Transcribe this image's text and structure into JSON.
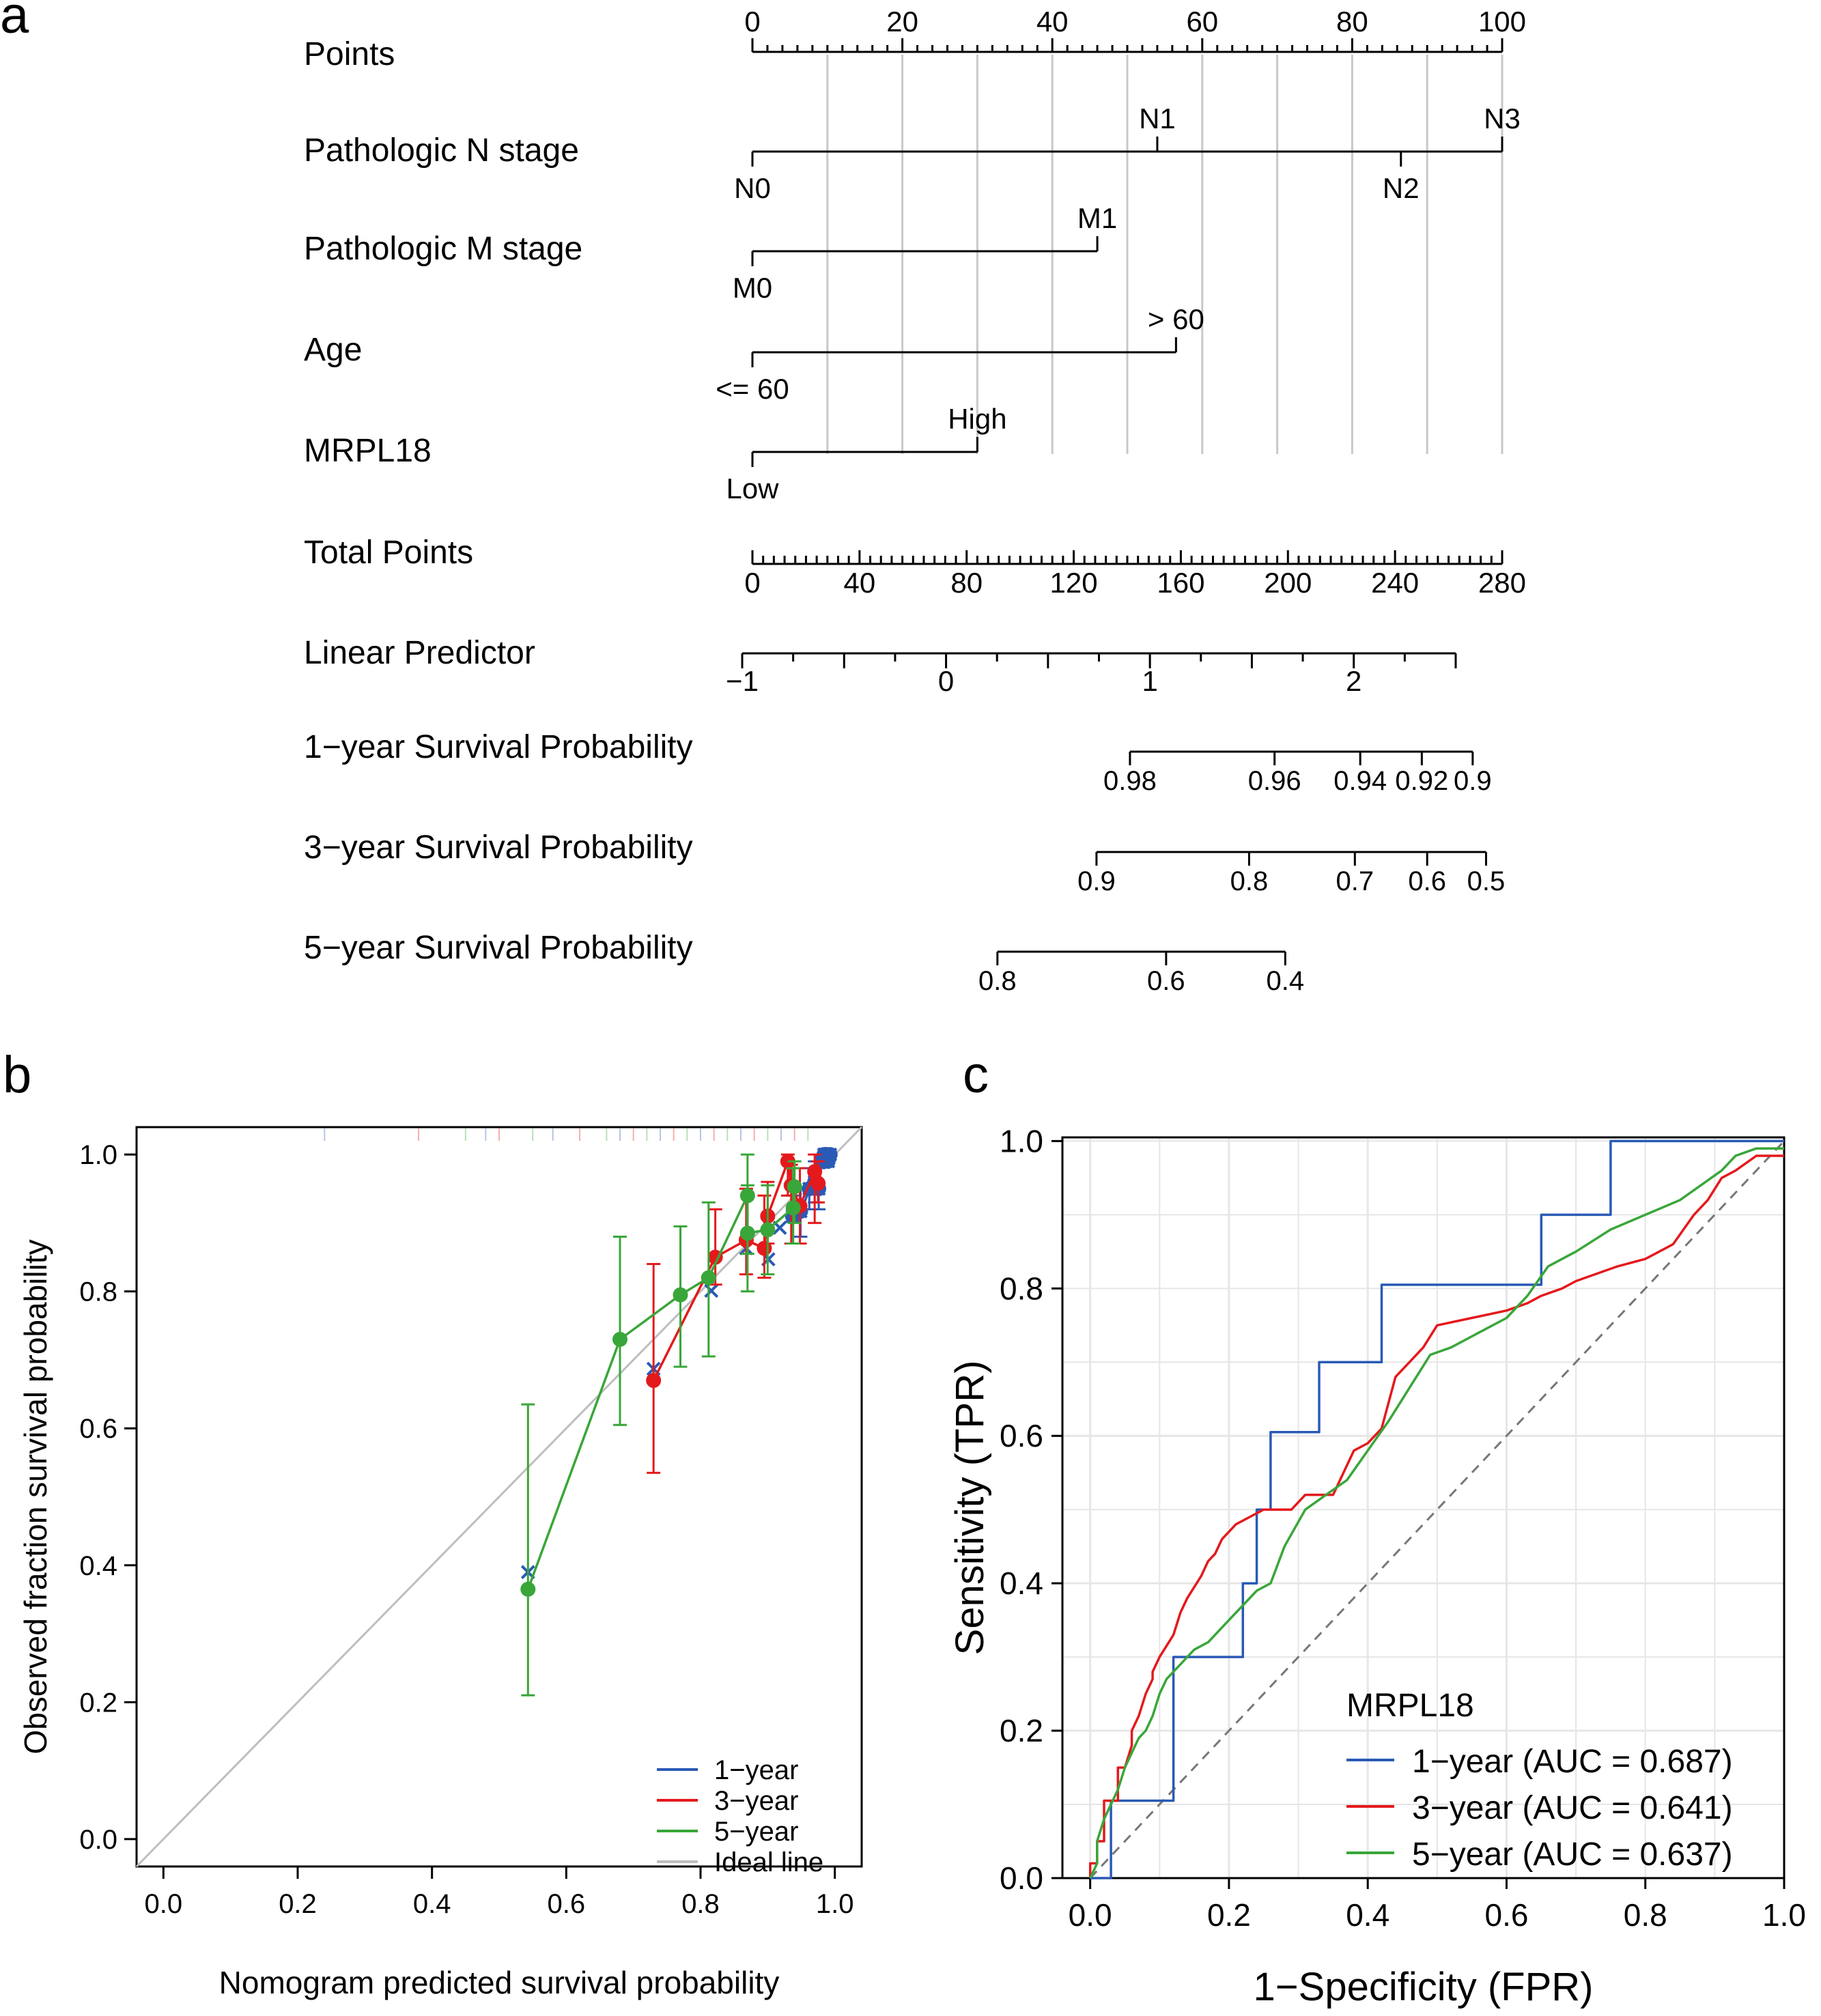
{
  "panels": {
    "a": "a",
    "b": "b",
    "c": "c"
  },
  "chart_data": [
    {
      "type": "nomogram",
      "panel": "a",
      "points_axis": {
        "label": "Points",
        "range": [
          0,
          100
        ],
        "major_ticks": [
          0,
          20,
          40,
          60,
          80,
          100
        ],
        "tick_labels": [
          "0",
          "20",
          "40",
          "60",
          "80",
          "100"
        ],
        "minor_step": 2,
        "gridlines": [
          10,
          20,
          30,
          40,
          50,
          60,
          70,
          80,
          90,
          100
        ]
      },
      "variables": [
        {
          "label": "Pathologic N stage",
          "levels": [
            {
              "name": "N0",
              "points": 0,
              "pos": "below"
            },
            {
              "name": "N1",
              "points": 54,
              "pos": "above"
            },
            {
              "name": "N2",
              "points": 86.5,
              "pos": "below"
            },
            {
              "name": "N3",
              "points": 100,
              "pos": "above"
            }
          ]
        },
        {
          "label": "Pathologic M stage",
          "levels": [
            {
              "name": "M0",
              "points": 0,
              "pos": "below"
            },
            {
              "name": "M1",
              "points": 46,
              "pos": "above"
            }
          ]
        },
        {
          "label": "Age",
          "levels": [
            {
              "name": "<= 60",
              "points": 0,
              "pos": "below"
            },
            {
              "name": "> 60",
              "points": 56.5,
              "pos": "above"
            }
          ]
        },
        {
          "label": "MRPL18",
          "levels": [
            {
              "name": "Low",
              "points": 0,
              "pos": "below"
            },
            {
              "name": "High",
              "points": 30,
              "pos": "above"
            }
          ]
        }
      ],
      "total_points": {
        "label": "Total Points",
        "range": [
          0,
          280
        ],
        "major_ticks": [
          0,
          40,
          80,
          120,
          160,
          200,
          240,
          280
        ],
        "tick_labels": [
          "0",
          "40",
          "80",
          "120",
          "160",
          "200",
          "240",
          "280"
        ],
        "minor_step": 4
      },
      "linear_predictor": {
        "label": "Linear Predictor",
        "range": [
          -1,
          2.5
        ],
        "ticks": [
          -1,
          -0.5,
          0,
          0.5,
          1,
          1.5,
          2,
          2.5
        ],
        "tick_labels": [
          "−1",
          "0",
          "1",
          "2"
        ],
        "labeled_values": [
          -1,
          0,
          1,
          2
        ],
        "minor_step": 0.25
      },
      "survival_scales": [
        {
          "label": "1−year Survival Probability",
          "ticks": [
            {
              "label": "0.98",
              "total_points": 141
            },
            {
              "label": "0.96",
              "total_points": 195
            },
            {
              "label": "0.94",
              "total_points": 227
            },
            {
              "label": "0.92",
              "total_points": 250
            },
            {
              "label": "0.9",
              "total_points": 269
            }
          ]
        },
        {
          "label": "3−year Survival Probability",
          "ticks": [
            {
              "label": "0.9",
              "total_points": 128.5
            },
            {
              "label": "0.8",
              "total_points": 185.5
            },
            {
              "label": "0.7",
              "total_points": 225
            },
            {
              "label": "0.6",
              "total_points": 252
            },
            {
              "label": "0.5",
              "total_points": 274
            }
          ]
        },
        {
          "label": "5−year Survival Probability",
          "ticks": [
            {
              "label": "0.8",
              "total_points": 91.5
            },
            {
              "label": "0.6",
              "total_points": 154.5
            },
            {
              "label": "0.4",
              "total_points": 199
            }
          ]
        }
      ]
    },
    {
      "type": "scatter",
      "panel": "b",
      "xlabel": "Nomogram predicted survival probability",
      "ylabel": "Observed fraction survival probability",
      "xlim": [
        -0.04,
        1.04
      ],
      "ylim": [
        -0.04,
        1.04
      ],
      "xticks": [
        0,
        0.2,
        0.4,
        0.6,
        0.8,
        1
      ],
      "xtick_labels": [
        "0.0",
        "0.2",
        "0.4",
        "0.6",
        "0.8",
        "1.0"
      ],
      "yticks": [
        0,
        0.2,
        0.4,
        0.6,
        0.8,
        1
      ],
      "ytick_labels": [
        "0.0",
        "0.2",
        "0.4",
        "0.6",
        "0.8",
        "1.0"
      ],
      "grid": false,
      "legend_position": "bottom-right",
      "ideal_line": {
        "name": "Ideal line",
        "color": "#bebebe"
      },
      "series": [
        {
          "name": "1−year",
          "color": "#2a5ab5",
          "x": [
            0.543,
            0.73,
            0.816,
            0.868,
            0.901,
            0.918,
            0.937,
            0.949,
            0.962,
            0.97,
            0.976,
            0.98,
            0.984,
            0.986,
            0.988,
            0.99,
            0.993
          ],
          "y": [
            0.39,
            0.687,
            0.801,
            0.863,
            0.847,
            0.893,
            0.91,
            0.917,
            0.95,
            0.96,
            0.95,
            0.99,
            1.0,
            1.0,
            1.0,
            0.99,
            1.0
          ],
          "err_low": [
            null,
            null,
            null,
            null,
            null,
            null,
            0.87,
            0.88,
            0.92,
            0.93,
            0.92,
            null,
            null,
            null,
            null,
            null,
            null
          ],
          "err_high": [
            null,
            null,
            null,
            null,
            null,
            null,
            0.94,
            0.95,
            0.98,
            0.99,
            0.98,
            null,
            null,
            null,
            null,
            null,
            null
          ],
          "smooth_x": [
            0.945,
            0.955,
            0.962,
            0.97,
            0.976,
            0.98,
            0.984,
            0.986,
            0.99,
            0.993
          ],
          "smooth_y": [
            0.92,
            0.93,
            0.95,
            0.96,
            0.955,
            0.99,
            1.0,
            1.0,
            0.99,
            1.0
          ]
        },
        {
          "name": "3−year",
          "color": "#e4191c",
          "x": [
            0.73,
            0.822,
            0.868,
            0.895,
            0.9,
            0.93,
            0.935,
            0.948,
            0.97,
            0.975
          ],
          "y": [
            0.67,
            0.85,
            0.875,
            0.863,
            0.91,
            0.99,
            0.955,
            0.925,
            0.975,
            0.958
          ],
          "err_low": [
            0.535,
            0.81,
            0.825,
            0.82,
            0.87,
            0.94,
            0.87,
            0.87,
            0.9,
            0.93
          ],
          "err_high": [
            0.84,
            0.92,
            0.95,
            0.94,
            0.96,
            1.0,
            0.985,
            0.98,
            1.0,
            0.99
          ],
          "smooth_x": [
            0.73,
            0.822,
            0.868,
            0.895,
            0.9,
            0.93,
            0.935,
            0.948,
            0.97,
            0.975
          ],
          "smooth_y": [
            0.67,
            0.85,
            0.875,
            0.863,
            0.91,
            0.99,
            0.955,
            0.925,
            0.975,
            0.958
          ]
        },
        {
          "name": "5−year",
          "color": "#39a639",
          "x": [
            0.543,
            0.68,
            0.77,
            0.812,
            0.87,
            0.87,
            0.9,
            0.938,
            0.94
          ],
          "y": [
            0.365,
            0.73,
            0.795,
            0.82,
            0.94,
            0.885,
            0.89,
            0.922,
            0.953
          ],
          "err_low": [
            0.21,
            0.605,
            0.69,
            0.705,
            0.855,
            0.8,
            0.825,
            0.87,
            0.9
          ],
          "err_high": [
            0.635,
            0.88,
            0.895,
            0.93,
            1.0,
            0.955,
            0.955,
            0.98,
            0.99
          ],
          "smooth_x": [
            0.543,
            0.68,
            0.77,
            0.812,
            0.87,
            0.87,
            0.9,
            0.938,
            0.94
          ],
          "smooth_y": [
            0.365,
            0.73,
            0.795,
            0.82,
            0.94,
            0.885,
            0.89,
            0.922,
            0.953
          ]
        }
      ],
      "rug": [
        0.24,
        0.38,
        0.45,
        0.48,
        0.5,
        0.55,
        0.58,
        0.62,
        0.66,
        0.68,
        0.7,
        0.72,
        0.74,
        0.76,
        0.78,
        0.8,
        0.82,
        0.84,
        0.86,
        0.88,
        0.9,
        0.92,
        0.94,
        0.96
      ]
    },
    {
      "type": "line",
      "panel": "c",
      "xlabel": "1−Specificity (FPR)",
      "ylabel": "Sensitivity (TPR)",
      "xlim": [
        -0.04,
        1.0
      ],
      "ylim": [
        0,
        1.005
      ],
      "xticks": [
        0,
        0.2,
        0.4,
        0.6,
        0.8,
        1
      ],
      "xtick_labels": [
        "0.0",
        "0.2",
        "0.4",
        "0.6",
        "0.8",
        "1.0"
      ],
      "yticks": [
        0,
        0.2,
        0.4,
        0.6,
        0.8,
        1
      ],
      "ytick_labels": [
        "0.0",
        "0.2",
        "0.4",
        "0.6",
        "0.8",
        "1.0"
      ],
      "grid": true,
      "diagonal": {
        "color": "#777777",
        "dashed": true
      },
      "legend_title": "MRPL18",
      "legend_position": "bottom-right",
      "series": [
        {
          "name": "1−year (AUC = 0.687)",
          "color": "#2a5ab5",
          "x": [
            0,
            0.03,
            0.03,
            0.12,
            0.12,
            0.13,
            0.13,
            0.22,
            0.22,
            0.24,
            0.24,
            0.26,
            0.26,
            0.33,
            0.33,
            0.42,
            0.42,
            0.65,
            0.65,
            0.75,
            0.75,
            1.0
          ],
          "y": [
            0,
            0,
            0.105,
            0.105,
            0.3,
            0.3,
            0.3,
            0.3,
            0.4,
            0.4,
            0.5,
            0.5,
            0.605,
            0.605,
            0.7,
            0.7,
            0.805,
            0.805,
            0.9,
            0.9,
            1.0,
            1.0
          ]
        },
        {
          "name": "3−year (AUC = 0.641)",
          "color": "#e4191c",
          "x": [
            0,
            0.0,
            0.01,
            0.01,
            0.02,
            0.02,
            0.04,
            0.04,
            0.05,
            0.06,
            0.06,
            0.07,
            0.08,
            0.09,
            0.09,
            0.1,
            0.12,
            0.13,
            0.14,
            0.16,
            0.17,
            0.18,
            0.19,
            0.21,
            0.23,
            0.25,
            0.27,
            0.29,
            0.31,
            0.35,
            0.38,
            0.4,
            0.42,
            0.44,
            0.46,
            0.48,
            0.5,
            0.55,
            0.6,
            0.63,
            0.65,
            0.68,
            0.7,
            0.76,
            0.8,
            0.84,
            0.87,
            0.89,
            0.91,
            0.93,
            0.96,
            1.0
          ],
          "y": [
            0,
            0.02,
            0.02,
            0.05,
            0.05,
            0.105,
            0.105,
            0.15,
            0.15,
            0.18,
            0.2,
            0.22,
            0.25,
            0.27,
            0.28,
            0.3,
            0.33,
            0.36,
            0.38,
            0.41,
            0.43,
            0.44,
            0.46,
            0.48,
            0.49,
            0.5,
            0.5,
            0.5,
            0.52,
            0.52,
            0.58,
            0.59,
            0.61,
            0.68,
            0.7,
            0.72,
            0.75,
            0.76,
            0.77,
            0.78,
            0.79,
            0.8,
            0.81,
            0.83,
            0.84,
            0.86,
            0.9,
            0.92,
            0.95,
            0.96,
            0.98,
            0.98
          ]
        },
        {
          "name": "5−year (AUC = 0.637)",
          "color": "#39a639",
          "x": [
            0,
            0.01,
            0.01,
            0.02,
            0.03,
            0.04,
            0.05,
            0.06,
            0.07,
            0.08,
            0.09,
            0.1,
            0.11,
            0.12,
            0.13,
            0.14,
            0.15,
            0.17,
            0.18,
            0.2,
            0.22,
            0.24,
            0.26,
            0.28,
            0.31,
            0.34,
            0.37,
            0.4,
            0.43,
            0.45,
            0.47,
            0.49,
            0.52,
            0.56,
            0.6,
            0.63,
            0.66,
            0.7,
            0.75,
            0.8,
            0.85,
            0.88,
            0.91,
            0.93,
            0.96,
            1.0
          ],
          "y": [
            0,
            0.02,
            0.05,
            0.08,
            0.1,
            0.12,
            0.15,
            0.17,
            0.19,
            0.2,
            0.22,
            0.25,
            0.27,
            0.28,
            0.29,
            0.3,
            0.31,
            0.32,
            0.33,
            0.35,
            0.37,
            0.39,
            0.4,
            0.45,
            0.5,
            0.52,
            0.54,
            0.58,
            0.62,
            0.65,
            0.68,
            0.71,
            0.72,
            0.74,
            0.76,
            0.79,
            0.83,
            0.85,
            0.88,
            0.9,
            0.92,
            0.94,
            0.96,
            0.98,
            0.99,
            0.99
          ]
        }
      ]
    }
  ]
}
